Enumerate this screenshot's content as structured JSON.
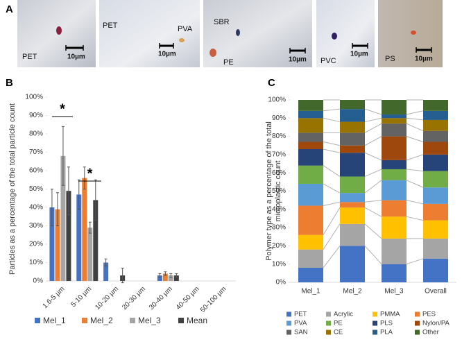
{
  "panels": [
    "A",
    "B",
    "C"
  ],
  "images": [
    {
      "labels": [
        "PET",
        "10µm"
      ]
    },
    {
      "labels": [
        "PET",
        "PVA",
        "10µm"
      ]
    },
    {
      "labels": [
        "SBR",
        "PE",
        "10µm"
      ]
    },
    {
      "labels": [
        "PVC",
        "10µm"
      ]
    },
    {
      "labels": [
        "PS",
        "10µm"
      ]
    }
  ],
  "chart_data": [
    {
      "type": "bar",
      "ylabel": "Particles as a percentage of the total particle count",
      "categories": [
        "1.6-5 µm",
        "5-10 µm",
        "10-20 µm",
        "20-30 µm",
        "30-40 µm",
        "40-50 µm",
        "50-100 µm"
      ],
      "series": [
        {
          "name": "Mel_1",
          "color": "#4472c4",
          "values": [
            40,
            47,
            10,
            0,
            3,
            0,
            0
          ],
          "errors": [
            10,
            8,
            2,
            0,
            1,
            0,
            0
          ]
        },
        {
          "name": "Mel_2",
          "color": "#ed7d31",
          "values": [
            39,
            56,
            0,
            0,
            4,
            0,
            0
          ],
          "errors": [
            9,
            6,
            0,
            0,
            1,
            0,
            0
          ]
        },
        {
          "name": "Mel_3",
          "color": "#a5a5a5",
          "values": [
            68,
            29,
            0,
            0,
            3,
            0,
            0
          ],
          "errors": [
            16,
            3,
            0,
            0,
            1,
            0,
            0
          ]
        },
        {
          "name": "Mean",
          "color": "#404040",
          "values": [
            49,
            44,
            3,
            0,
            3,
            0,
            0
          ],
          "errors": [
            13,
            11,
            4,
            0,
            1,
            0,
            0
          ]
        }
      ],
      "annotations": [
        "*",
        "*"
      ],
      "ylim": [
        0,
        100
      ],
      "yticks": [
        {
          "value": 0,
          "label": "0%"
        },
        {
          "value": 10,
          "label": "10%"
        },
        {
          "value": 20,
          "label": "20%"
        },
        {
          "value": 30,
          "label": "30%"
        },
        {
          "value": 40,
          "label": "40%"
        },
        {
          "value": 50,
          "label": "50%"
        },
        {
          "value": 60,
          "label": "60%"
        },
        {
          "value": 70,
          "label": "70%"
        },
        {
          "value": 80,
          "label": "80%"
        },
        {
          "value": 90,
          "label": "90%"
        },
        {
          "value": 100,
          "label": "100%"
        }
      ],
      "legend": "bottom"
    },
    {
      "type": "stacked_bar",
      "ylabel": [
        "Polymer type as a percentage of the total",
        "microplastic count"
      ],
      "categories": [
        "Mel_1",
        "Mel_2",
        "Mel_3",
        "Overall"
      ],
      "series": [
        {
          "name": "PET",
          "color": "#4472c4",
          "values": [
            8,
            20,
            10,
            13
          ]
        },
        {
          "name": "Acrylic",
          "color": "#a5a5a5",
          "values": [
            10,
            12,
            14,
            11
          ]
        },
        {
          "name": "PMMA",
          "color": "#ffc000",
          "values": [
            8,
            9,
            12,
            10
          ]
        },
        {
          "name": "PES",
          "color": "#ed7d31",
          "values": [
            16,
            3,
            9,
            9
          ]
        },
        {
          "name": "PVA",
          "color": "#5b9bd5",
          "values": [
            12,
            5,
            11,
            9
          ]
        },
        {
          "name": "PE",
          "color": "#70ad47",
          "values": [
            10,
            9,
            6,
            9
          ]
        },
        {
          "name": "PLS",
          "color": "#264478",
          "values": [
            9,
            13,
            5,
            9
          ]
        },
        {
          "name": "Nylon/PA",
          "color": "#9e480e",
          "values": [
            4,
            4,
            13,
            7
          ]
        },
        {
          "name": "SAN",
          "color": "#636363",
          "values": [
            5,
            7,
            7,
            6
          ]
        },
        {
          "name": "CE",
          "color": "#997300",
          "values": [
            8,
            6,
            3,
            6
          ]
        },
        {
          "name": "PLA",
          "color": "#255e91",
          "values": [
            4,
            7,
            2,
            5
          ]
        },
        {
          "name": "Other",
          "color": "#43682b",
          "values": [
            6,
            5,
            8,
            6
          ]
        }
      ],
      "ylim": [
        0,
        100
      ],
      "yticks": [
        {
          "value": 0,
          "label": "0%"
        },
        {
          "value": 10,
          "label": "10%"
        },
        {
          "value": 20,
          "label": "20%"
        },
        {
          "value": 30,
          "label": "30%"
        },
        {
          "value": 40,
          "label": "40%"
        },
        {
          "value": 50,
          "label": "50%"
        },
        {
          "value": 60,
          "label": "60%"
        },
        {
          "value": 70,
          "label": "70%"
        },
        {
          "value": 80,
          "label": "80%"
        },
        {
          "value": 90,
          "label": "90%"
        },
        {
          "value": 100,
          "label": "100%"
        }
      ],
      "legend": "bottom"
    }
  ]
}
